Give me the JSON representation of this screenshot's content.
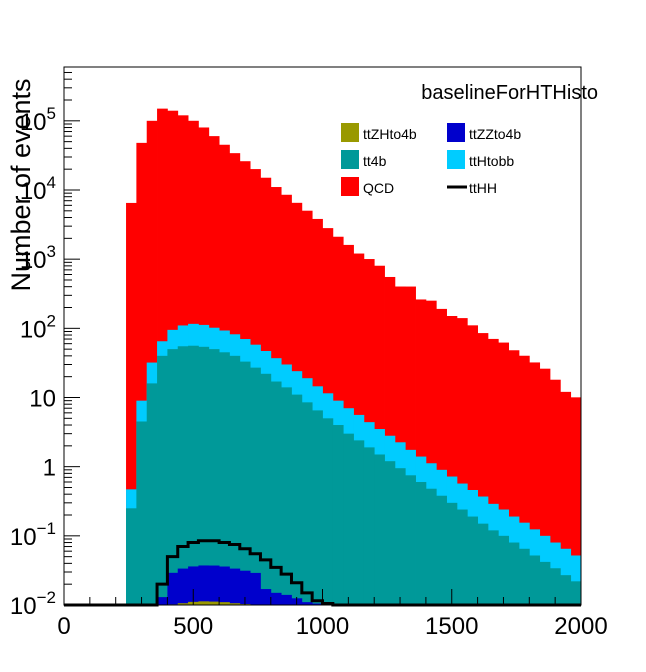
{
  "chart_data": {
    "type": "bar",
    "title": "baselineForHTHisto",
    "ylabel": "Number of events",
    "xlabel": "",
    "xlim": [
      0,
      2000
    ],
    "ylim": [
      0.01,
      600000
    ],
    "yscale": "log",
    "bin_width": 40,
    "bin_start": 0,
    "x_ticks": [
      "0",
      "500",
      "1000",
      "1500",
      "2000"
    ],
    "x_tick_values": [
      0,
      500,
      1000,
      1500,
      2000
    ],
    "y_ticks": [
      {
        "value": 0.01,
        "base": "10",
        "exp": "−2"
      },
      {
        "value": 0.1,
        "base": "10",
        "exp": "−1"
      },
      {
        "value": 1,
        "base": "1",
        "exp": ""
      },
      {
        "value": 10,
        "base": "10",
        "exp": ""
      },
      {
        "value": 100,
        "base": "10",
        "exp": "2"
      },
      {
        "value": 1000,
        "base": "10",
        "exp": "3"
      },
      {
        "value": 10000,
        "base": "10",
        "exp": "4"
      },
      {
        "value": 100000,
        "base": "10",
        "exp": "5"
      }
    ],
    "legend_position": "top-right",
    "stacked": true,
    "series": [
      {
        "name": "ttZHto4b",
        "color": "#999900",
        "style": "fill",
        "values": [
          0,
          0,
          0,
          0,
          0,
          0,
          0,
          0,
          0,
          0,
          0.0102,
          0.0106,
          0.0111,
          0.0113,
          0.0112,
          0.011,
          0.0106,
          0.0103,
          0.0101,
          0,
          0,
          0,
          0,
          0,
          0,
          0,
          0,
          0,
          0,
          0,
          0,
          0,
          0,
          0,
          0,
          0,
          0,
          0,
          0,
          0,
          0,
          0,
          0,
          0,
          0,
          0,
          0,
          0,
          0,
          0
        ]
      },
      {
        "name": "ttZZto4b",
        "color": "#0000cc",
        "style": "fill",
        "values": [
          0,
          0,
          0,
          0,
          0,
          0,
          0,
          0,
          0,
          0.013,
          0.019,
          0.023,
          0.025,
          0.026,
          0.026,
          0.025,
          0.023,
          0.021,
          0.019,
          0.017,
          0.015,
          0.014,
          0.0125,
          0.011,
          0.0105,
          0,
          0,
          0,
          0,
          0,
          0,
          0,
          0,
          0,
          0,
          0,
          0,
          0,
          0,
          0,
          0,
          0,
          0,
          0,
          0,
          0,
          0,
          0,
          0,
          0
        ]
      },
      {
        "name": "tt4b",
        "color": "#009999",
        "style": "fill",
        "values": [
          0,
          0,
          0,
          0,
          0,
          0,
          0.25,
          4.5,
          16,
          40,
          50,
          55,
          56,
          54,
          50,
          45,
          40,
          33,
          27,
          22,
          17,
          14,
          11,
          8.5,
          6.5,
          5,
          4,
          3,
          2.4,
          1.9,
          1.5,
          1.2,
          0.95,
          0.75,
          0.6,
          0.48,
          0.38,
          0.3,
          0.24,
          0.19,
          0.15,
          0.12,
          0.1,
          0.08,
          0.065,
          0.052,
          0.042,
          0.034,
          0.027,
          0.022
        ]
      },
      {
        "name": "ttHtobb",
        "color": "#00ccff",
        "style": "fill",
        "values": [
          0,
          0,
          0,
          0,
          0,
          0,
          0.22,
          4.5,
          16,
          25,
          45,
          55,
          60,
          58,
          52,
          48,
          42,
          37,
          31,
          25,
          20,
          16,
          13,
          10.5,
          8,
          6.5,
          5,
          4,
          3.2,
          2.5,
          2,
          1.6,
          1.3,
          1,
          0.8,
          0.64,
          0.52,
          0.42,
          0.33,
          0.27,
          0.22,
          0.17,
          0.14,
          0.11,
          0.09,
          0.072,
          0.058,
          0.046,
          0.038,
          0.03
        ]
      },
      {
        "name": "QCD",
        "color": "#ff0000",
        "style": "fill",
        "values": [
          0,
          0,
          0,
          0,
          0,
          0,
          6500,
          48000,
          100000,
          150000,
          140000,
          120000,
          100000,
          80000,
          60000,
          45000,
          34000,
          26000,
          20000,
          15000,
          11000,
          8500,
          6500,
          5000,
          3800,
          2800,
          2100,
          1600,
          1200,
          1000,
          800,
          550,
          400,
          400,
          260,
          250,
          190,
          150,
          140,
          110,
          85,
          70,
          62,
          48,
          40,
          32,
          26,
          18,
          12,
          10
        ]
      },
      {
        "name": "ttHH",
        "color": "#000000",
        "style": "line",
        "values": [
          0,
          0,
          0,
          0,
          0,
          0,
          0,
          0,
          0,
          0.02,
          0.05,
          0.07,
          0.08,
          0.085,
          0.085,
          0.08,
          0.075,
          0.065,
          0.055,
          0.045,
          0.035,
          0.028,
          0.021,
          0.015,
          0.0115,
          0.0105,
          0,
          0,
          0,
          0,
          0,
          0,
          0,
          0,
          0,
          0,
          0,
          0,
          0,
          0,
          0,
          0,
          0,
          0,
          0,
          0,
          0,
          0,
          0,
          0
        ]
      }
    ],
    "legend_order": [
      "ttZHto4b",
      "ttZZto4b",
      "tt4b",
      "ttHtobb",
      "QCD",
      "ttHH"
    ]
  }
}
